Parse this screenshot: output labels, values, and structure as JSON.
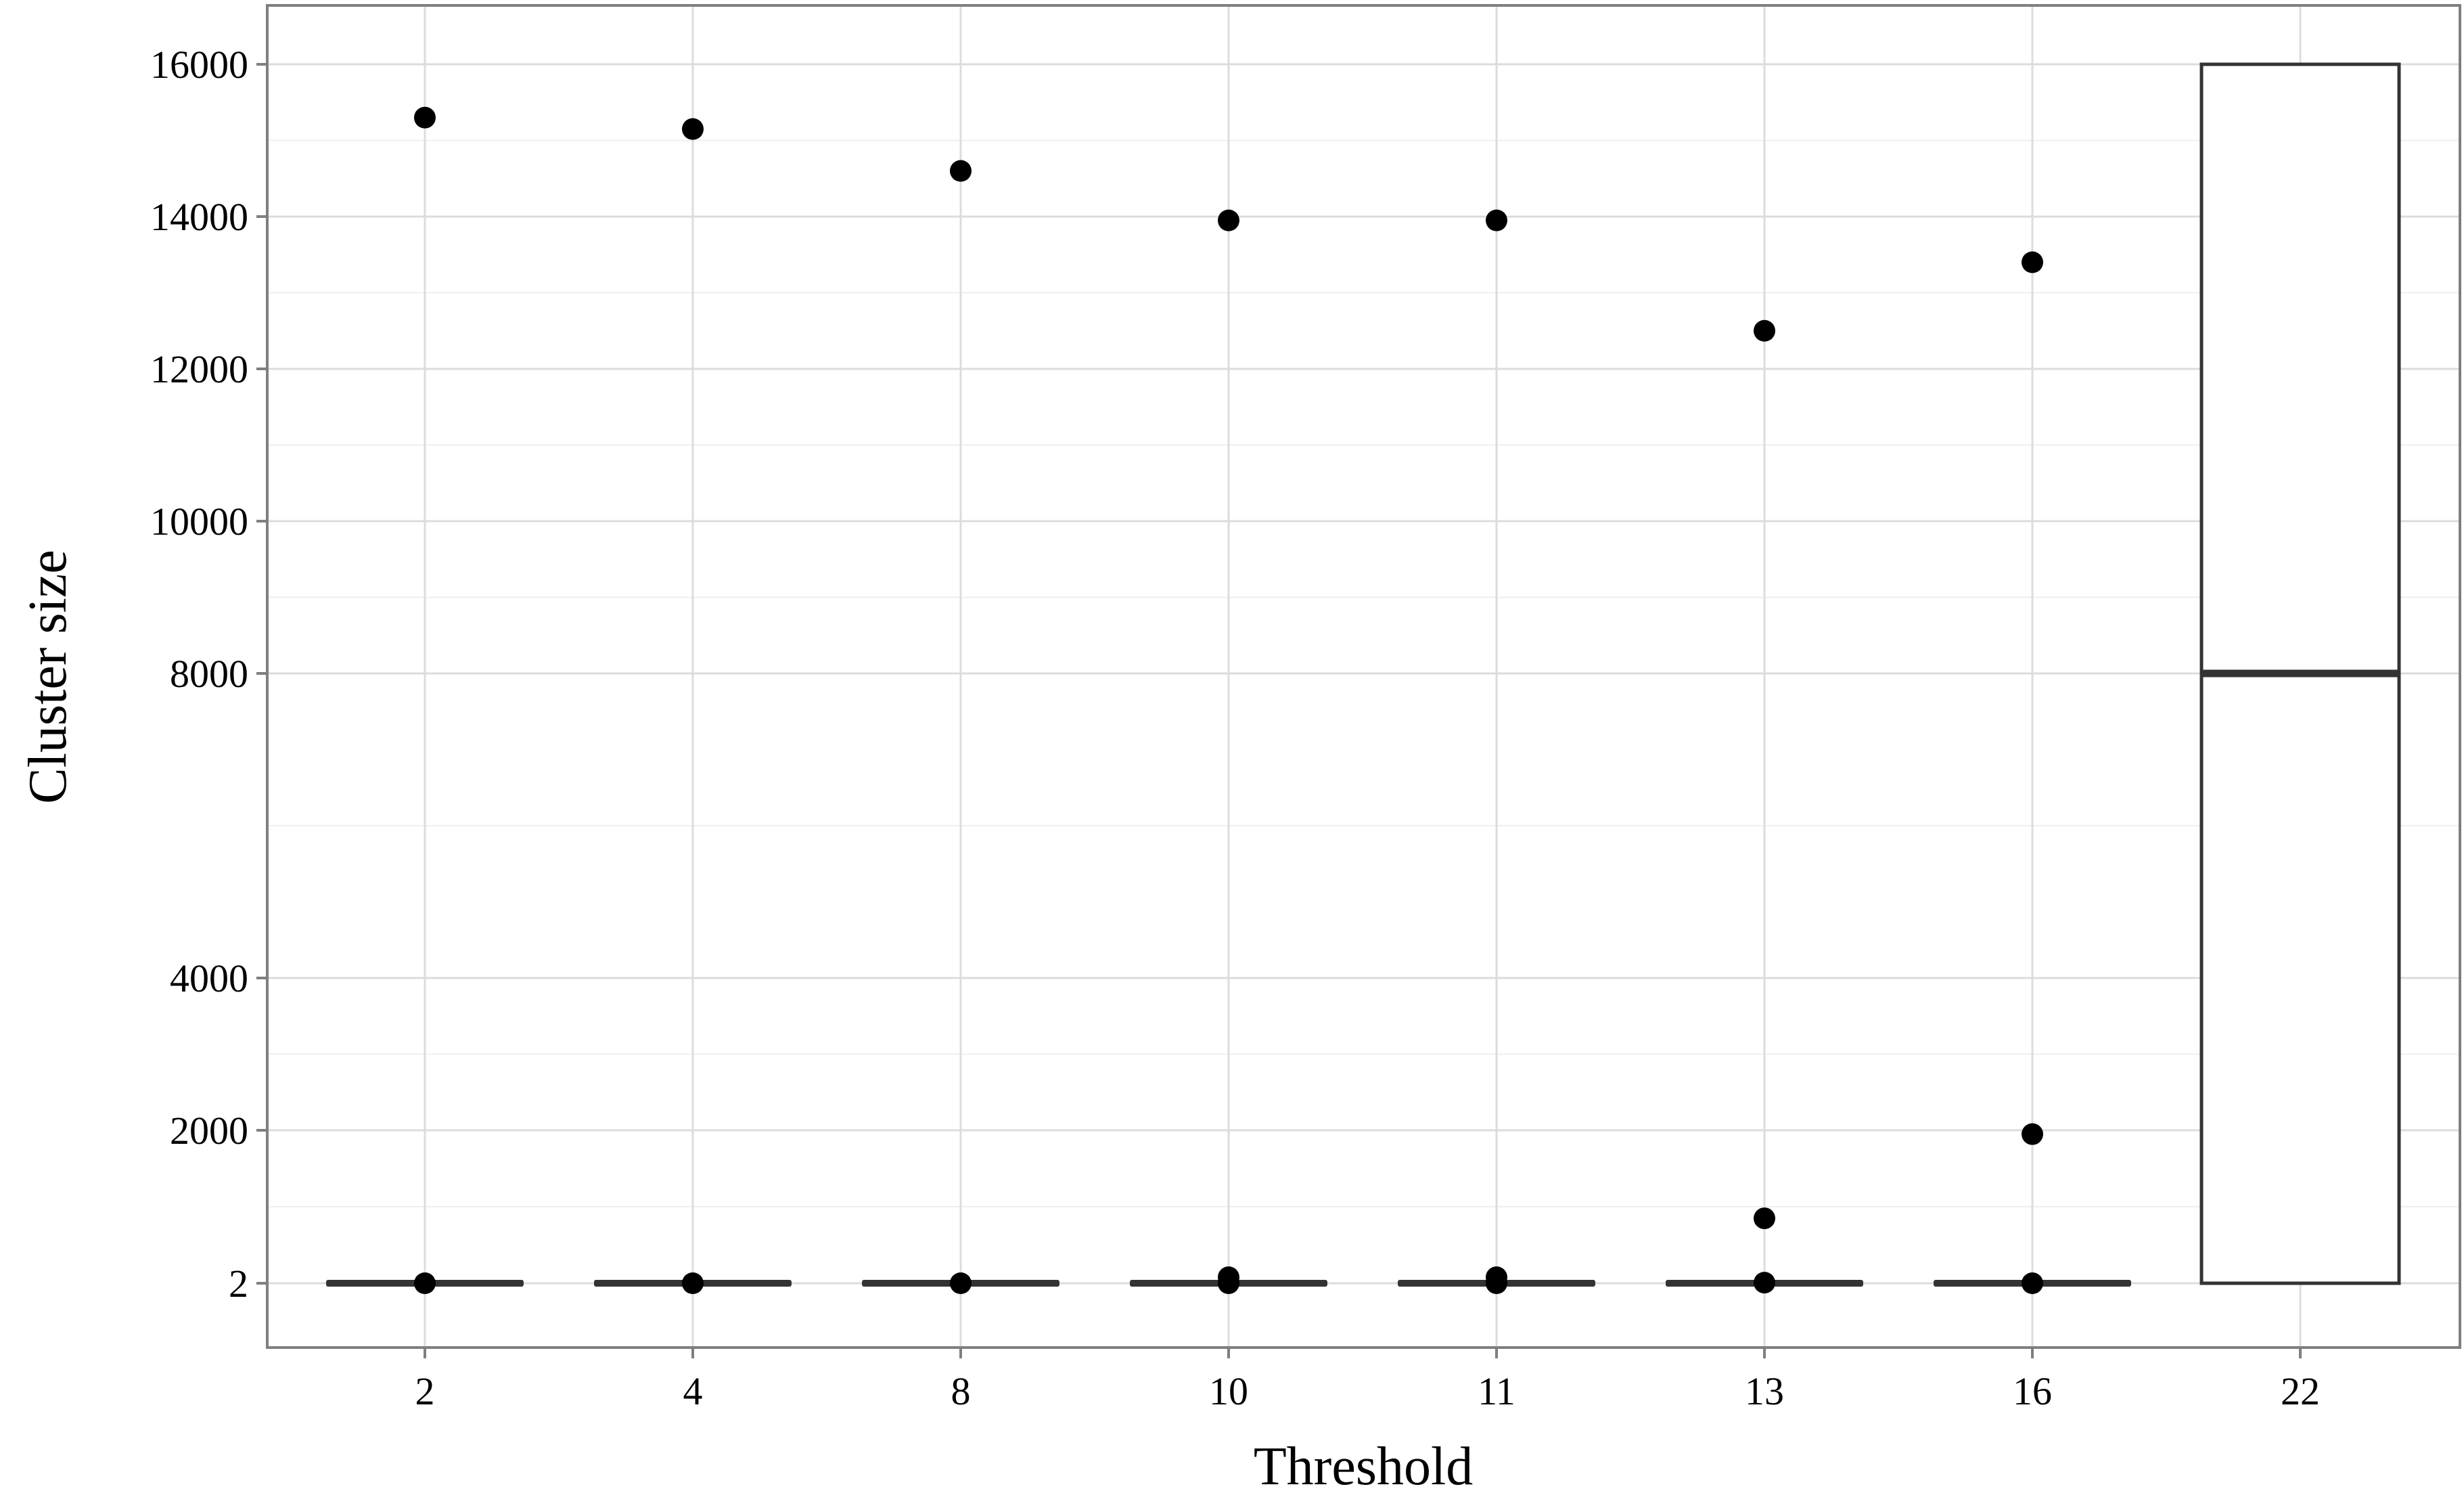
{
  "chart_data": {
    "type": "boxplot",
    "xlabel": "Threshold",
    "ylabel": "Cluster size",
    "categories": [
      "2",
      "4",
      "8",
      "10",
      "11",
      "13",
      "16",
      "22"
    ],
    "y_ticks": [
      2,
      2000,
      4000,
      8000,
      10000,
      12000,
      14000,
      16000
    ],
    "y_tick_labels": [
      "2",
      "2000",
      "4000",
      "8000",
      "10000",
      "12000",
      "14000",
      "16000"
    ],
    "ylim": [
      -1000,
      16800
    ],
    "grid": true,
    "boxes": [
      {
        "category": "2",
        "q1": 2,
        "median": 2,
        "q3": 2
      },
      {
        "category": "4",
        "q1": 2,
        "median": 2,
        "q3": 2
      },
      {
        "category": "8",
        "q1": 2,
        "median": 2,
        "q3": 2
      },
      {
        "category": "10",
        "q1": 2,
        "median": 2,
        "q3": 2
      },
      {
        "category": "11",
        "q1": 2,
        "median": 2,
        "q3": 2
      },
      {
        "category": "13",
        "q1": 2,
        "median": 2,
        "q3": 2
      },
      {
        "category": "16",
        "q1": 2,
        "median": 2,
        "q3": 2
      },
      {
        "category": "22",
        "q1": 2,
        "median": 8000,
        "q3": 16000
      }
    ],
    "points": [
      {
        "category": "2",
        "values": [
          15300,
          2
        ]
      },
      {
        "category": "4",
        "values": [
          15150,
          2
        ]
      },
      {
        "category": "8",
        "values": [
          14600,
          2
        ]
      },
      {
        "category": "10",
        "values": [
          13950,
          80,
          2
        ]
      },
      {
        "category": "11",
        "values": [
          13950,
          80,
          2
        ]
      },
      {
        "category": "13",
        "values": [
          12500,
          850,
          10
        ]
      },
      {
        "category": "16",
        "values": [
          13400,
          1950,
          2
        ]
      }
    ],
    "colors": {
      "panel_border": "#7f7f7f",
      "grid_major": "#dcdcdc",
      "grid_minor": "#efefef",
      "box_stroke": "#333333",
      "point": "#000000"
    }
  }
}
